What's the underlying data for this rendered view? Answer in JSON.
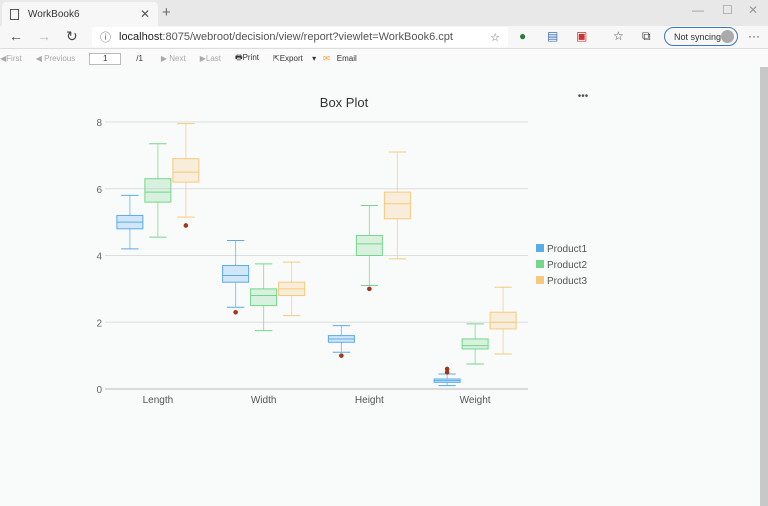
{
  "browser": {
    "tab_title": "WorkBook6",
    "url_host": "localhost",
    "url_rest": ":8075/webroot/decision/view/report?viewlet=WorkBook6.cpt",
    "sync_label": "Not syncing"
  },
  "toolbar": {
    "first": "First",
    "previous": "Previous",
    "page": "1",
    "total": "/1",
    "next": "Next",
    "last": "Last",
    "print": "Print",
    "export": "Export",
    "email": "Email"
  },
  "chart_data": {
    "type": "boxplot",
    "title": "Box Plot",
    "menu": "•••",
    "categories": [
      "Length",
      "Width",
      "Height",
      "Weight"
    ],
    "ylim": [
      0,
      8
    ],
    "yticks": [
      0,
      2,
      4,
      6,
      8
    ],
    "grid": true,
    "legend": "right",
    "series": [
      {
        "name": "Product1",
        "color": "#5aabea",
        "boxes": [
          {
            "min": 4.2,
            "q1": 4.8,
            "median": 5.0,
            "q3": 5.2,
            "max": 5.8,
            "outliers": []
          },
          {
            "min": 2.45,
            "q1": 3.2,
            "median": 3.4,
            "q3": 3.7,
            "max": 4.45,
            "outliers": [
              2.3
            ]
          },
          {
            "min": 1.1,
            "q1": 1.4,
            "median": 1.5,
            "q3": 1.6,
            "max": 1.9,
            "outliers": [
              1.0
            ]
          },
          {
            "min": 0.1,
            "q1": 0.2,
            "median": 0.25,
            "q3": 0.3,
            "max": 0.45,
            "outliers": [
              0.5,
              0.6
            ]
          }
        ]
      },
      {
        "name": "Product2",
        "color": "#74d68a",
        "boxes": [
          {
            "min": 4.55,
            "q1": 5.6,
            "median": 5.9,
            "q3": 6.3,
            "max": 7.35,
            "outliers": []
          },
          {
            "min": 1.75,
            "q1": 2.5,
            "median": 2.8,
            "q3": 3.0,
            "max": 3.75,
            "outliers": []
          },
          {
            "min": 3.1,
            "q1": 4.0,
            "median": 4.35,
            "q3": 4.6,
            "max": 5.5,
            "outliers": [
              3.0
            ]
          },
          {
            "min": 0.75,
            "q1": 1.2,
            "median": 1.3,
            "q3": 1.5,
            "max": 1.95,
            "outliers": []
          }
        ]
      },
      {
        "name": "Product3",
        "color": "#f7c97a",
        "boxes": [
          {
            "min": 5.15,
            "q1": 6.2,
            "median": 6.5,
            "q3": 6.9,
            "max": 7.95,
            "outliers": [
              4.9
            ]
          },
          {
            "min": 2.2,
            "q1": 2.8,
            "median": 3.0,
            "q3": 3.2,
            "max": 3.8,
            "outliers": []
          },
          {
            "min": 3.9,
            "q1": 5.1,
            "median": 5.55,
            "q3": 5.9,
            "max": 7.1,
            "outliers": []
          },
          {
            "min": 1.05,
            "q1": 1.8,
            "median": 2.0,
            "q3": 2.3,
            "max": 3.05,
            "outliers": []
          }
        ]
      }
    ],
    "outlier_color": "#a0391c"
  }
}
